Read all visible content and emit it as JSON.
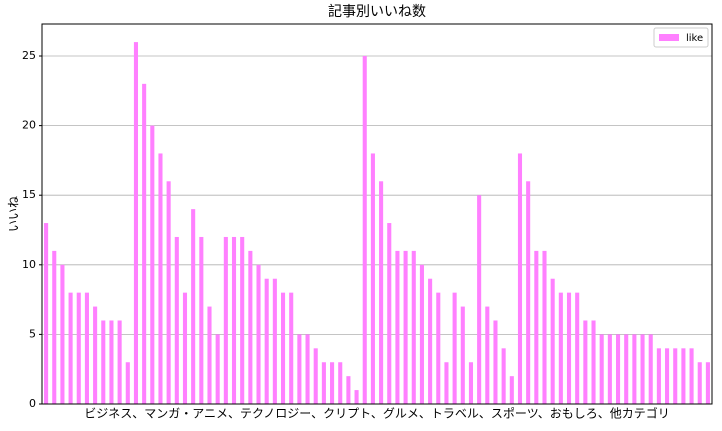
{
  "chart_data": {
    "type": "bar",
    "title": "記事別いいね数",
    "x_label": "ビジネス、マンガ・アニメ、テクノロジー、クリプト、グルメ、トラベル、スポーツ、おもしろ、他カテゴリ",
    "y_label": "いいね",
    "series": [
      {
        "name": "like",
        "color": "#ff80ff",
        "values": [
          13,
          11,
          10,
          8,
          8,
          8,
          7,
          6,
          6,
          6,
          3,
          26,
          23,
          20,
          18,
          16,
          12,
          8,
          14,
          12,
          7,
          5,
          12,
          12,
          12,
          11,
          10,
          9,
          9,
          8,
          8,
          5,
          5,
          4,
          3,
          3,
          3,
          2,
          1,
          25,
          18,
          16,
          13,
          11,
          11,
          11,
          10,
          9,
          8,
          3,
          8,
          7,
          3,
          15,
          7,
          6,
          4,
          2,
          18,
          16,
          11,
          11,
          9,
          8,
          8,
          8,
          6,
          6,
          5,
          5,
          5,
          5,
          5,
          5,
          5,
          4,
          4,
          4,
          4,
          4,
          3,
          3
        ]
      }
    ],
    "ylim": [
      0,
      27.3
    ],
    "yticks": [
      0,
      5,
      10,
      15,
      20,
      25
    ],
    "grid": true,
    "legend": "upper right"
  }
}
